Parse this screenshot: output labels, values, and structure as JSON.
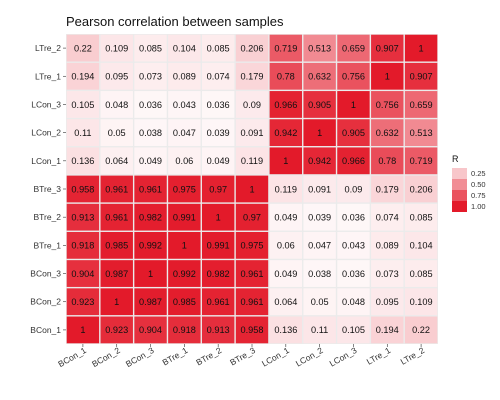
{
  "chart_data": {
    "type": "heatmap",
    "title": "Pearson correlation between samples",
    "x_labels": [
      "BCon_1",
      "BCon_2",
      "BCon_3",
      "BTre_1",
      "BTre_2",
      "BTre_3",
      "LCon_1",
      "LCon_2",
      "LCon_3",
      "LTre_1",
      "LTre_2"
    ],
    "y_labels_top_to_bottom": [
      "LTre_2",
      "LTre_1",
      "LCon_3",
      "LCon_2",
      "LCon_1",
      "BTre_3",
      "BTre_2",
      "BTre_1",
      "BCon_3",
      "BCon_2",
      "BCon_1"
    ],
    "values": [
      [
        0.22,
        0.109,
        0.085,
        0.104,
        0.085,
        0.206,
        0.719,
        0.513,
        0.659,
        0.907,
        1
      ],
      [
        0.194,
        0.095,
        0.073,
        0.089,
        0.074,
        0.179,
        0.78,
        0.632,
        0.756,
        1,
        0.907
      ],
      [
        0.105,
        0.048,
        0.036,
        0.043,
        0.036,
        0.09,
        0.966,
        0.905,
        1,
        0.756,
        0.659
      ],
      [
        0.11,
        0.05,
        0.038,
        0.047,
        0.039,
        0.091,
        0.942,
        1,
        0.905,
        0.632,
        0.513
      ],
      [
        0.136,
        0.064,
        0.049,
        0.06,
        0.049,
        0.119,
        1,
        0.942,
        0.966,
        0.78,
        0.719
      ],
      [
        0.958,
        0.961,
        0.961,
        0.975,
        0.97,
        1,
        0.119,
        0.091,
        0.09,
        0.179,
        0.206
      ],
      [
        0.913,
        0.961,
        0.982,
        0.991,
        1,
        0.97,
        0.049,
        0.039,
        0.036,
        0.074,
        0.085
      ],
      [
        0.918,
        0.985,
        0.992,
        1,
        0.991,
        0.975,
        0.06,
        0.047,
        0.043,
        0.089,
        0.104
      ],
      [
        0.904,
        0.987,
        1,
        0.992,
        0.982,
        0.961,
        0.049,
        0.038,
        0.036,
        0.073,
        0.085
      ],
      [
        0.923,
        1,
        0.987,
        0.985,
        0.961,
        0.961,
        0.064,
        0.05,
        0.048,
        0.095,
        0.109
      ],
      [
        1,
        0.923,
        0.904,
        0.918,
        0.913,
        0.958,
        0.136,
        0.11,
        0.105,
        0.194,
        0.22
      ]
    ],
    "legend": {
      "title": "R",
      "ticks": [
        "0.25",
        "0.50",
        "0.75",
        "1.00"
      ],
      "tick_values": [
        0.25,
        0.5,
        0.75,
        1.0
      ],
      "placement": "right"
    },
    "color_scale": {
      "low": "#ffffff",
      "high": "#e31a2a"
    },
    "grid": true,
    "panel_background": "#ebebeb",
    "grid_color": "#ffffff"
  }
}
